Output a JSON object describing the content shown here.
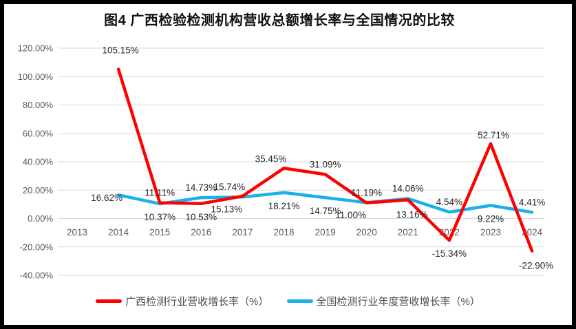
{
  "figure": {
    "title": "图4 广西检验检测机构营收总额增长率与全国情况的比较"
  },
  "chart_data": {
    "type": "line",
    "title": "图4 广西检验检测机构营收总额增长率与全国情况的比较",
    "categories": [
      "2013",
      "2014",
      "2015",
      "2016",
      "2017",
      "2018",
      "2019",
      "2020",
      "2021",
      "2022",
      "2023",
      "2024"
    ],
    "series": [
      {
        "name": "广西检测行业营收增长率（%）",
        "color": "#FF0000",
        "x": [
          2014,
          2015,
          2016,
          2017,
          2018,
          2019,
          2020,
          2021,
          2022,
          2023,
          2024
        ],
        "values": [
          105.15,
          11.11,
          10.53,
          15.74,
          35.45,
          31.09,
          11.0,
          13.16,
          -15.34,
          52.71,
          -22.9
        ],
        "labels": [
          "105.15%",
          "11.11%",
          "10.53%",
          "15.74%",
          "35.45%",
          "31.09%",
          "11.00%",
          "13.16%",
          "-15.34%",
          "52.71%",
          "-22.90%"
        ],
        "label_pos": [
          "top",
          "above",
          "below",
          "above-left",
          "above-left",
          "above",
          "below-left",
          "below-right",
          "below",
          "above-right",
          "below-right"
        ]
      },
      {
        "name": "全国检测行业年度营收增长率（%）",
        "color": "#1AB0EC",
        "x": [
          2014,
          2015,
          2016,
          2017,
          2018,
          2019,
          2020,
          2021,
          2022,
          2023,
          2024
        ],
        "values": [
          16.62,
          10.37,
          14.73,
          15.13,
          18.21,
          14.75,
          11.19,
          14.06,
          4.54,
          9.22,
          4.41
        ],
        "labels": [
          "16.62%",
          "10.37%",
          "14.73%",
          "15.13%",
          "18.21%",
          "14.75%",
          "11.19%",
          "14.06%",
          "4.54%",
          "9.22%",
          "4.41%"
        ],
        "label_pos": [
          "left",
          "below",
          "above",
          "below-left",
          "below",
          "below",
          "above",
          "above",
          "above",
          "below",
          "above"
        ]
      }
    ],
    "y_axis": {
      "min": -40,
      "max": 120,
      "step": 20,
      "tick_labels": [
        "-40.00%",
        "-20.00%",
        "0.00%",
        "20.00%",
        "40.00%",
        "60.00%",
        "80.00%",
        "100.00%",
        "120.00%"
      ]
    },
    "x_axis": {
      "tick_labels": [
        "2013",
        "2014",
        "2015",
        "2016",
        "2017",
        "2018",
        "2019",
        "2020",
        "2021",
        "2022",
        "2023",
        "2024"
      ]
    },
    "grid": true,
    "legend_position": "bottom",
    "style": {
      "grid_color": "#D9D9D9",
      "axis_text_color": "#595959",
      "data_label_color": "#262626",
      "background": "#FFFFFF",
      "frame_border_color": "#000000"
    }
  }
}
